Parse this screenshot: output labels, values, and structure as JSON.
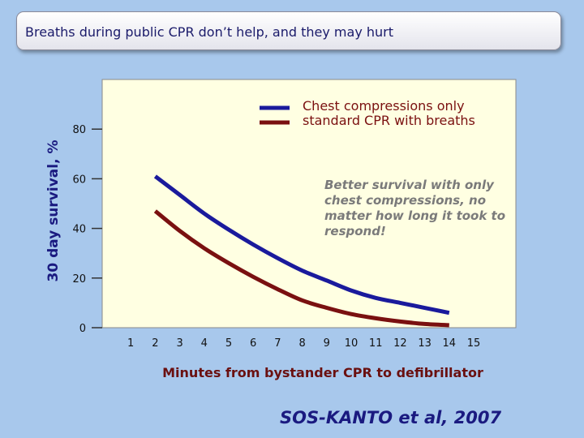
{
  "header": {
    "title": "Breaths during public CPR don’t help, and they may hurt"
  },
  "chart_data": {
    "type": "line",
    "title": "",
    "xlabel": "Minutes from bystander CPR to defibrillator",
    "ylabel": "30 day survival, %",
    "x_ticks": [
      1,
      2,
      3,
      4,
      5,
      6,
      7,
      8,
      9,
      10,
      11,
      12,
      13,
      14,
      15
    ],
    "y_ticks": [
      0,
      20,
      40,
      60,
      80
    ],
    "xlim": [
      0,
      15
    ],
    "ylim": [
      0,
      95
    ],
    "grid": false,
    "legend_position": "top-right",
    "series": [
      {
        "name": "Chest compressions only",
        "color": "#1a1a9c",
        "x": [
          2,
          3,
          4,
          5,
          6,
          7,
          8,
          9,
          10,
          11,
          12,
          13,
          14
        ],
        "y": [
          61,
          53.5,
          46,
          39.5,
          33.5,
          28,
          23,
          19,
          15,
          12,
          10,
          8,
          6
        ]
      },
      {
        "name": "standard CPR with breaths",
        "color": "#7a1010",
        "x": [
          2,
          3,
          4,
          5,
          6,
          7,
          8,
          9,
          10,
          11,
          12,
          13,
          14
        ],
        "y": [
          47,
          39,
          32,
          26,
          20.5,
          15.5,
          11,
          8,
          5.5,
          3.8,
          2.5,
          1.5,
          1
        ]
      }
    ],
    "annotation": "Better survival with only chest compressions, no matter how long it took to respond!"
  },
  "footer": {
    "credit": "SOS-KANTO et al, 2007"
  }
}
